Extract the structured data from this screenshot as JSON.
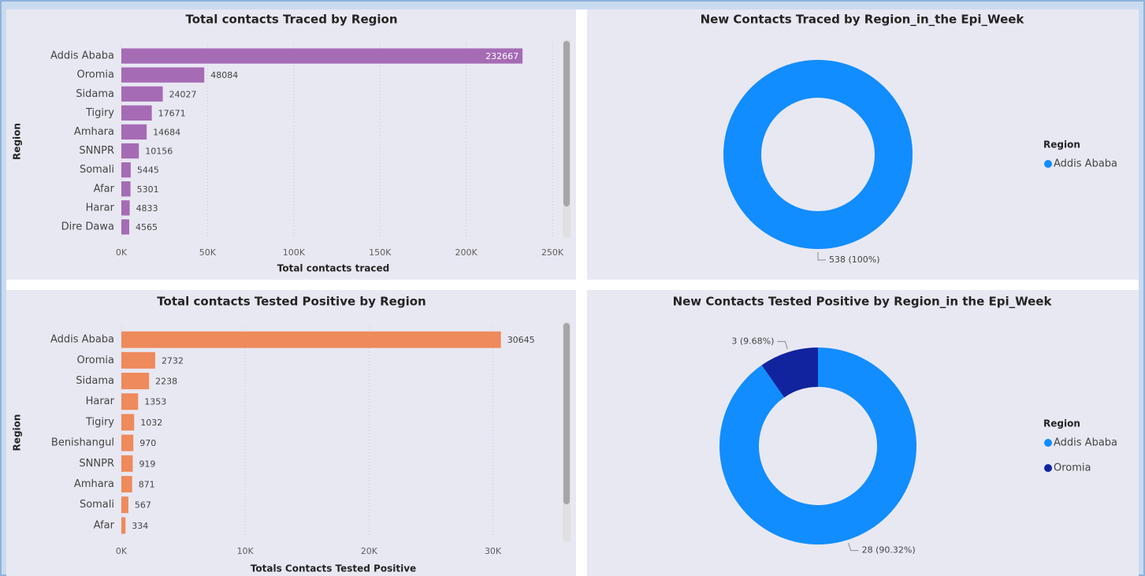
{
  "chart_data": [
    {
      "type": "bar",
      "orientation": "horizontal",
      "title": "Total contacts Traced by Region",
      "xlabel": "Total contacts traced",
      "ylabel": "Region",
      "categories": [
        "Addis Ababa",
        "Oromia",
        "Sidama",
        "Tigiry",
        "Amhara",
        "SNNPR",
        "Somali",
        "Afar",
        "Harar",
        "Dire Dawa"
      ],
      "values": [
        232667,
        48084,
        24027,
        17671,
        14684,
        10156,
        5445,
        5301,
        4833,
        4565
      ],
      "color": "#a66bb5",
      "xlim": [
        0,
        255000
      ],
      "xticks": [
        {
          "value": 0,
          "label": "0K"
        },
        {
          "value": 50000,
          "label": "50K"
        },
        {
          "value": 100000,
          "label": "100K"
        },
        {
          "value": 150000,
          "label": "150K"
        },
        {
          "value": 200000,
          "label": "200K"
        },
        {
          "value": 250000,
          "label": "250K"
        }
      ],
      "grid": true
    },
    {
      "type": "donut",
      "title": "New Contacts Traced by Region_in_the Epi_Week",
      "legend_title": "Region",
      "legend": "right",
      "categories": [
        "Addis Ababa"
      ],
      "values": [
        538
      ],
      "value_labels": [
        "538 (100%)"
      ],
      "colors": [
        "#118dff"
      ]
    },
    {
      "type": "bar",
      "orientation": "horizontal",
      "title": "Total contacts Tested Positive by Region",
      "xlabel": "Totals Contacts Tested Positive",
      "ylabel": "Region",
      "categories": [
        "Addis Ababa",
        "Oromia",
        "Sidama",
        "Harar",
        "Tigiry",
        "Benishangul",
        "SNNPR",
        "Amhara",
        "Somali",
        "Afar"
      ],
      "values": [
        30645,
        2732,
        2238,
        1353,
        1032,
        970,
        919,
        871,
        567,
        334
      ],
      "color": "#ee8a5b",
      "xlim": [
        0,
        35500
      ],
      "xticks": [
        {
          "value": 0,
          "label": "0K"
        },
        {
          "value": 10000,
          "label": "10K"
        },
        {
          "value": 20000,
          "label": "20K"
        },
        {
          "value": 30000,
          "label": "30K"
        }
      ],
      "grid": true
    },
    {
      "type": "donut",
      "title": "New Contacts Tested Positive by Region_in the Epi_Week",
      "legend_title": "Region",
      "legend": "right",
      "categories": [
        "Addis Ababa",
        "Oromia"
      ],
      "values": [
        28,
        3
      ],
      "value_labels": [
        "28 (90.32%)",
        "3 (9.68%)"
      ],
      "colors": [
        "#118dff",
        "#12239e"
      ]
    }
  ]
}
